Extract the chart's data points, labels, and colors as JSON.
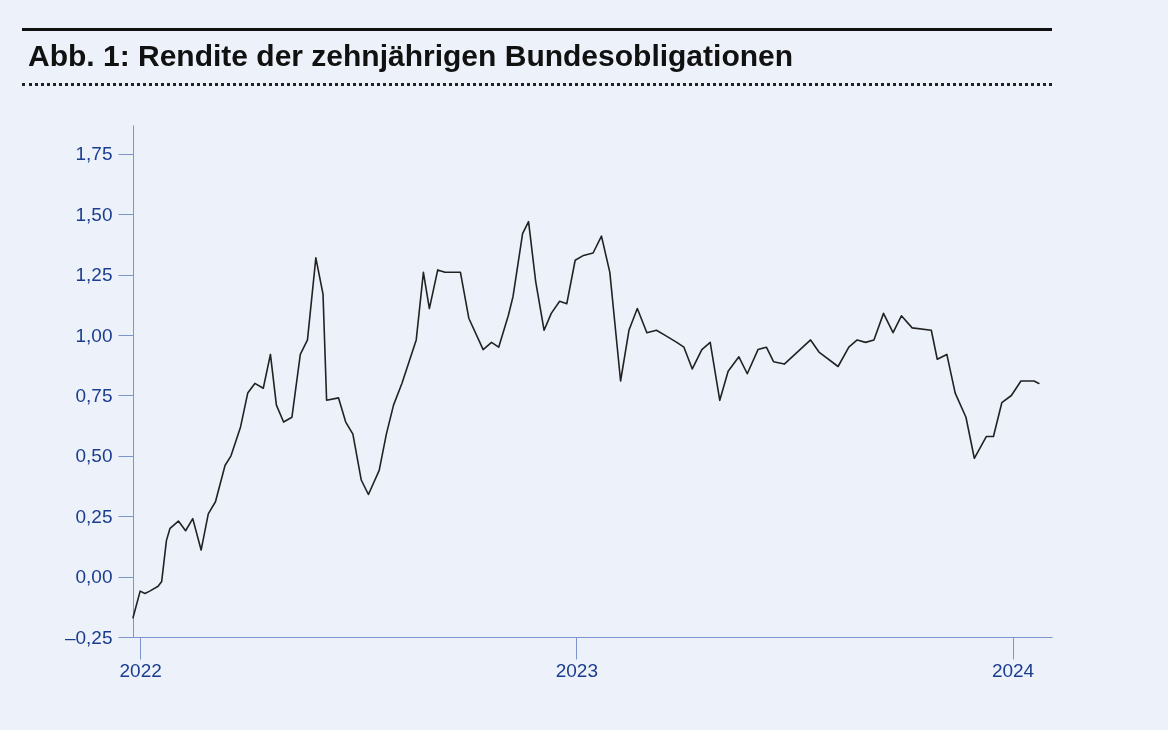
{
  "chart_data": {
    "type": "line",
    "title": "Abb. 1: Rendite der zehnjährigen Bundesobligationen",
    "x": [
      "2021-12-26",
      "2022-01-01",
      "2022-01-05",
      "2022-01-09",
      "2022-01-16",
      "2022-01-19",
      "2022-01-23",
      "2022-01-26",
      "2022-02-02",
      "2022-02-08",
      "2022-02-14",
      "2022-02-21",
      "2022-02-27",
      "2022-03-05",
      "2022-03-13",
      "2022-03-18",
      "2022-03-26",
      "2022-04-01",
      "2022-04-07",
      "2022-04-14",
      "2022-04-20",
      "2022-04-25",
      "2022-05-01",
      "2022-05-08",
      "2022-05-15",
      "2022-05-21",
      "2022-05-28",
      "2022-06-03",
      "2022-06-06",
      "2022-06-16",
      "2022-06-22",
      "2022-06-28",
      "2022-07-05",
      "2022-07-11",
      "2022-07-20",
      "2022-07-26",
      "2022-08-01",
      "2022-08-08",
      "2022-08-14",
      "2022-08-20",
      "2022-08-26",
      "2022-08-31",
      "2022-09-07",
      "2022-09-13",
      "2022-09-26",
      "2022-10-03",
      "2022-10-15",
      "2022-10-22",
      "2022-10-28",
      "2022-11-05",
      "2022-11-09",
      "2022-11-17",
      "2022-11-22",
      "2022-11-28",
      "2022-12-05",
      "2022-12-11",
      "2022-12-18",
      "2022-12-24",
      "2022-12-31",
      "2023-01-07",
      "2023-01-15",
      "2023-01-22",
      "2023-01-29",
      "2023-02-07",
      "2023-02-14",
      "2023-02-21",
      "2023-03-01",
      "2023-03-09",
      "2023-03-16",
      "2023-03-26",
      "2023-04-01",
      "2023-04-08",
      "2023-04-16",
      "2023-04-23",
      "2023-05-01",
      "2023-05-08",
      "2023-05-17",
      "2023-05-24",
      "2023-06-02",
      "2023-06-09",
      "2023-06-15",
      "2023-06-24",
      "2023-07-16",
      "2023-07-23",
      "2023-08-08",
      "2023-08-17",
      "2023-08-24",
      "2023-08-31",
      "2023-09-07",
      "2023-09-15",
      "2023-09-23",
      "2023-09-30",
      "2023-10-09",
      "2023-10-25",
      "2023-10-30",
      "2023-11-07",
      "2023-11-14",
      "2023-11-23",
      "2023-11-30",
      "2023-12-10",
      "2023-12-16",
      "2023-12-23",
      "2023-12-31",
      "2024-01-08",
      "2024-01-19",
      "2024-01-23"
    ],
    "series": [
      {
        "color": "#222222",
        "values": [
          -0.17,
          -0.06,
          -0.07,
          -0.06,
          -0.04,
          -0.02,
          0.15,
          0.2,
          0.23,
          0.19,
          0.24,
          0.11,
          0.26,
          0.31,
          0.46,
          0.5,
          0.62,
          0.76,
          0.8,
          0.78,
          0.92,
          0.71,
          0.64,
          0.66,
          0.92,
          0.98,
          1.32,
          1.17,
          0.73,
          0.74,
          0.64,
          0.59,
          0.4,
          0.34,
          0.44,
          0.59,
          0.71,
          0.8,
          0.89,
          0.98,
          1.26,
          1.11,
          1.27,
          1.26,
          1.26,
          1.07,
          0.94,
          0.97,
          0.95,
          1.08,
          1.16,
          1.42,
          1.47,
          1.22,
          1.02,
          1.09,
          1.14,
          1.13,
          1.31,
          1.33,
          1.34,
          1.41,
          1.26,
          0.81,
          1.02,
          1.11,
          1.01,
          1.02,
          1.0,
          0.97,
          0.95,
          0.86,
          0.94,
          0.97,
          0.73,
          0.85,
          0.91,
          0.84,
          0.94,
          0.95,
          0.89,
          0.88,
          0.98,
          0.93,
          0.87,
          0.95,
          0.98,
          0.97,
          0.98,
          1.09,
          1.01,
          1.08,
          1.03,
          1.02,
          0.9,
          0.92,
          0.76,
          0.66,
          0.49,
          0.58,
          0.58,
          0.72,
          0.75,
          0.81,
          0.81,
          0.8
        ]
      }
    ],
    "xlim": [
      "2021-12-26",
      "2024-02-03"
    ],
    "xticks": [
      "2022",
      "2023",
      "2024"
    ],
    "ylim": [
      -0.25,
      1.87
    ],
    "yticks": [
      {
        "value": -0.25,
        "label": "–0,25"
      },
      {
        "value": 0,
        "label": "0,00"
      },
      {
        "value": 0.25,
        "label": "0,25"
      },
      {
        "value": 0.5,
        "label": "0,50"
      },
      {
        "value": 0.75,
        "label": "0,75"
      },
      {
        "value": 1,
        "label": "1,00"
      },
      {
        "value": 1.25,
        "label": "1,25"
      },
      {
        "value": 1.5,
        "label": "1,50"
      },
      {
        "value": 1.75,
        "label": "1,75"
      }
    ],
    "marker": "none",
    "line_style": "solid"
  }
}
